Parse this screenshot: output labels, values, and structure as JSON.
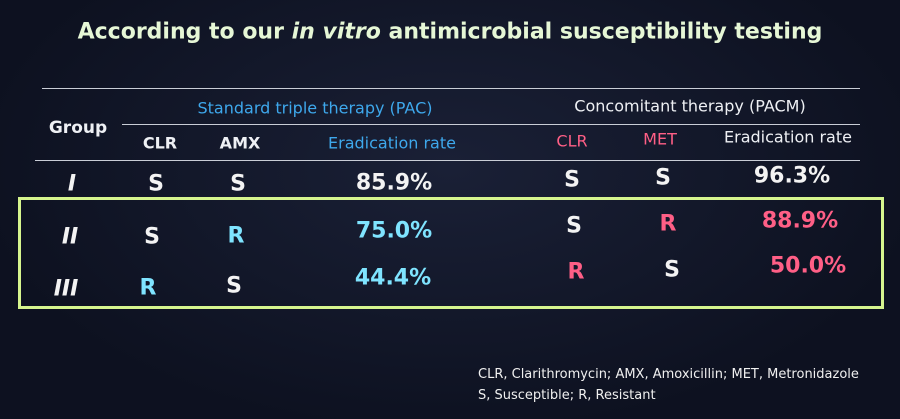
{
  "title": {
    "before": "According to our ",
    "italic": "in vitro",
    "after": " antimicrobial susceptibility testing"
  },
  "table": {
    "group_header": "Group",
    "groups": [
      "Standard triple therapy (PAC)",
      "Concomitant therapy (PACM)"
    ],
    "columns": [
      "CLR",
      "AMX",
      "Eradication rate",
      "CLR",
      "MET",
      "Eradication rate"
    ],
    "rows": [
      [
        "I",
        "S",
        "S",
        "85.9%",
        "S",
        "S",
        "96.3%"
      ],
      [
        "II",
        "S",
        "R",
        "75.0%",
        "S",
        "R",
        "88.9%"
      ],
      [
        "III",
        "R",
        "S",
        "44.4%",
        "R",
        "S",
        "50.0%"
      ]
    ]
  },
  "footnote": [
    "CLR, Clarithromycin; AMX, Amoxicillin; MET, Metronidazole",
    "S, Susceptible; R, Resistant"
  ]
}
